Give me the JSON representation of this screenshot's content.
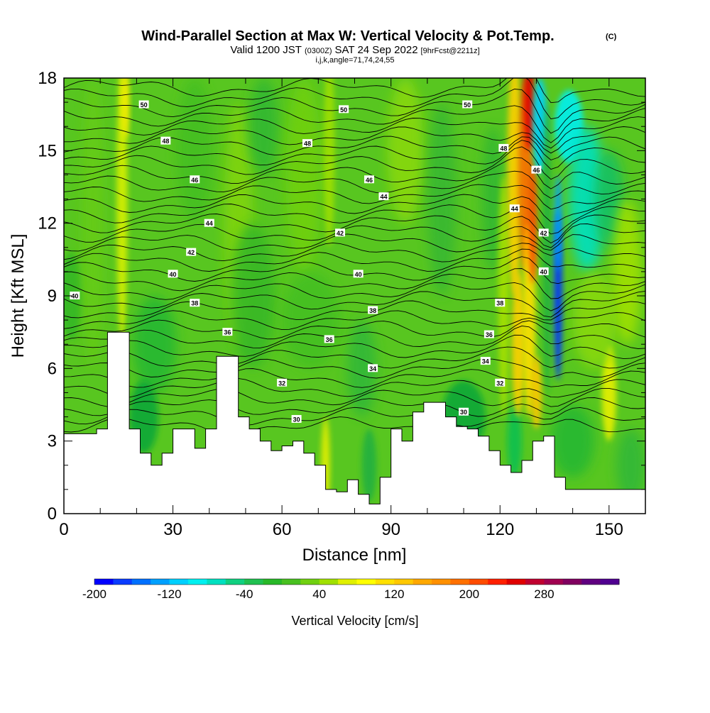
{
  "header": {
    "title": "Wind-Parallel Section at Max W: Vertical Velocity & Pot.Temp.",
    "copyright_mark": "(C)",
    "subtitle_valid": "Valid 1200 JST",
    "subtitle_utc": "(0300Z)",
    "subtitle_date": "SAT 24 Sep 2022",
    "subtitle_fcst": "[9hrFcst@2211z]",
    "subtitle_index": "i,j,k,angle=71,74,24,55"
  },
  "chart_data": {
    "type": "heatmap",
    "xlabel": "Distance [nm]",
    "ylabel": "Height [Kft MSL]",
    "xlim": [
      0,
      160
    ],
    "ylim": [
      0,
      18
    ],
    "x_ticks": [
      "0",
      "30",
      "60",
      "90",
      "120",
      "150"
    ],
    "y_ticks": [
      "0",
      "3",
      "6",
      "9",
      "12",
      "15",
      "18"
    ],
    "colorbar": {
      "label": "Vertical Velocity [cm/s]",
      "min": -200,
      "max": 360,
      "step": 20,
      "tick_labels": [
        "-200",
        "-120",
        "-40",
        "40",
        "120",
        "200",
        "280"
      ],
      "colors": [
        "#0000ff",
        "#0a3cff",
        "#0070ff",
        "#00a0ff",
        "#00d0ff",
        "#00f0f0",
        "#00e0c0",
        "#10d080",
        "#20c050",
        "#28b828",
        "#48c020",
        "#70d010",
        "#a0e000",
        "#e0f000",
        "#ffff00",
        "#ffe000",
        "#ffc800",
        "#ffa800",
        "#ff9000",
        "#ff7000",
        "#ff4c00",
        "#ff2000",
        "#e00000",
        "#c00030",
        "#a00050",
        "#800060",
        "#600080",
        "#500090"
      ]
    },
    "terrain_kft": {
      "x": [
        0,
        6,
        9,
        12,
        15,
        18,
        21,
        24,
        27,
        30,
        33,
        36,
        39,
        42,
        45,
        48,
        51,
        54,
        57,
        60,
        63,
        66,
        69,
        72,
        75,
        78,
        81,
        84,
        87,
        90,
        93,
        96,
        99,
        102,
        105,
        108,
        111,
        114,
        117,
        120,
        123,
        126,
        129,
        132,
        135,
        138,
        141,
        144,
        147,
        150,
        153,
        156,
        159
      ],
      "height": [
        3.3,
        3.3,
        3.5,
        7.5,
        7.5,
        3.5,
        2.5,
        2.0,
        2.5,
        3.5,
        3.5,
        2.7,
        3.5,
        6.5,
        6.5,
        4.0,
        3.5,
        3.0,
        2.6,
        2.8,
        3.0,
        2.5,
        2.0,
        1.0,
        0.9,
        1.4,
        0.8,
        0.4,
        1.5,
        3.5,
        3.0,
        4.2,
        4.6,
        4.6,
        4.0,
        3.6,
        3.5,
        3.2,
        2.6,
        2.0,
        1.7,
        2.2,
        3.0,
        3.2,
        1.5,
        1.0,
        1.0,
        1.0,
        1.0,
        1.0,
        1.0,
        1.0,
        1.0
      ]
    },
    "theta_labels": [
      {
        "x": 22,
        "y": 16.9,
        "text": "50"
      },
      {
        "x": 77,
        "y": 16.7,
        "text": "50"
      },
      {
        "x": 111,
        "y": 16.9,
        "text": "50"
      },
      {
        "x": 28,
        "y": 15.4,
        "text": "48"
      },
      {
        "x": 67,
        "y": 15.3,
        "text": "48"
      },
      {
        "x": 121,
        "y": 15.1,
        "text": "48"
      },
      {
        "x": 36,
        "y": 13.8,
        "text": "46"
      },
      {
        "x": 84,
        "y": 13.8,
        "text": "46"
      },
      {
        "x": 130,
        "y": 14.2,
        "text": "46"
      },
      {
        "x": 40,
        "y": 12.0,
        "text": "44"
      },
      {
        "x": 88,
        "y": 13.1,
        "text": "44"
      },
      {
        "x": 124,
        "y": 12.6,
        "text": "44"
      },
      {
        "x": 35,
        "y": 10.8,
        "text": "42"
      },
      {
        "x": 76,
        "y": 11.6,
        "text": "42"
      },
      {
        "x": 132,
        "y": 11.6,
        "text": "42"
      },
      {
        "x": 30,
        "y": 9.9,
        "text": "40"
      },
      {
        "x": 3,
        "y": 9.0,
        "text": "40"
      },
      {
        "x": 81,
        "y": 9.9,
        "text": "40"
      },
      {
        "x": 132,
        "y": 10.0,
        "text": "40"
      },
      {
        "x": 36,
        "y": 8.7,
        "text": "38"
      },
      {
        "x": 85,
        "y": 8.4,
        "text": "38"
      },
      {
        "x": 120,
        "y": 8.7,
        "text": "38"
      },
      {
        "x": 45,
        "y": 7.5,
        "text": "36"
      },
      {
        "x": 73,
        "y": 7.2,
        "text": "36"
      },
      {
        "x": 117,
        "y": 7.4,
        "text": "36"
      },
      {
        "x": 85,
        "y": 6.0,
        "text": "34"
      },
      {
        "x": 116,
        "y": 6.3,
        "text": "34"
      },
      {
        "x": 60,
        "y": 5.4,
        "text": "32"
      },
      {
        "x": 120,
        "y": 5.4,
        "text": "32"
      },
      {
        "x": 64,
        "y": 3.9,
        "text": "30"
      },
      {
        "x": 110,
        "y": 4.2,
        "text": "30"
      }
    ]
  }
}
